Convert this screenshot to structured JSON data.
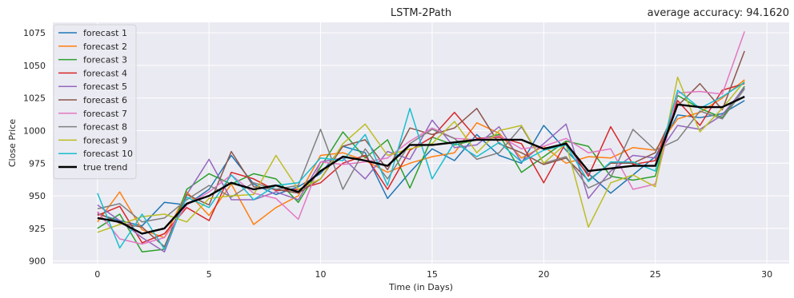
{
  "chart_data": {
    "type": "line",
    "title": "LSTM-2Path",
    "subtitle": "average accuracy: 94.1620",
    "xlabel": "Time (in Days)",
    "ylabel": "Close Price",
    "xlim": [
      -2,
      31
    ],
    "ylim": [
      898,
      1083
    ],
    "x_ticks": [
      0,
      5,
      10,
      15,
      20,
      25,
      30
    ],
    "x_tick_labels": [
      "0",
      "5",
      "10",
      "15",
      "20",
      "25",
      "30"
    ],
    "y_ticks": [
      900,
      925,
      950,
      975,
      1000,
      1025,
      1050,
      1075
    ],
    "y_tick_labels": [
      "900",
      "925",
      "950",
      "975",
      "1000",
      "1025",
      "1050",
      "1075"
    ],
    "grid": true,
    "legend_position": "top-left",
    "x": [
      0,
      1,
      2,
      3,
      4,
      5,
      6,
      7,
      8,
      9,
      10,
      11,
      12,
      13,
      14,
      15,
      16,
      17,
      18,
      19,
      20,
      21,
      22,
      23,
      24,
      25,
      26,
      27,
      28,
      29
    ],
    "series": [
      {
        "name": "forecast 1",
        "color": "#1f77b4",
        "width": 1.5,
        "values": [
          936,
          931,
          927,
          945,
          943,
          955,
          981,
          959,
          951,
          957,
          967,
          988,
          983,
          948,
          968,
          986,
          977,
          997,
          981,
          975,
          1004,
          985,
          967,
          952,
          966,
          980,
          1012,
          1010,
          1013,
          1023
        ]
      },
      {
        "name": "forecast 2",
        "color": "#ff7f0e",
        "width": 1.5,
        "values": [
          930,
          953,
          924,
          918,
          953,
          935,
          959,
          928,
          941,
          950,
          981,
          983,
          977,
          968,
          975,
          980,
          983,
          1006,
          998,
          979,
          988,
          975,
          980,
          979,
          987,
          985,
          1009,
          1014,
          1025,
          1039
        ]
      },
      {
        "name": "forecast 3",
        "color": "#2ca02c",
        "width": 1.5,
        "values": [
          925,
          936,
          907,
          909,
          955,
          967,
          959,
          967,
          963,
          945,
          972,
          999,
          979,
          993,
          956,
          995,
          989,
          993,
          997,
          968,
          980,
          992,
          988,
          965,
          962,
          965,
          1027,
          1017,
          1010,
          1034
        ]
      },
      {
        "name": "forecast 4",
        "color": "#d62728",
        "width": 1.5,
        "values": [
          935,
          942,
          914,
          921,
          941,
          931,
          968,
          963,
          954,
          955,
          960,
          975,
          981,
          955,
          985,
          995,
          1014,
          994,
          995,
          990,
          960,
          991,
          965,
          1003,
          974,
          977,
          1023,
          1004,
          1031,
          1036
        ]
      },
      {
        "name": "forecast 5",
        "color": "#9467bd",
        "width": 1.5,
        "values": [
          943,
          931,
          918,
          907,
          951,
          978,
          947,
          947,
          953,
          947,
          976,
          979,
          963,
          984,
          978,
          1008,
          987,
          989,
          1003,
          976,
          990,
          1005,
          948,
          969,
          981,
          979,
          1004,
          1001,
          1012,
          1033
        ]
      },
      {
        "name": "forecast 6",
        "color": "#8c564b",
        "width": 1.5,
        "values": [
          937,
          929,
          926,
          911,
          951,
          943,
          984,
          957,
          955,
          952,
          963,
          988,
          993,
          970,
          1002,
          997,
          1002,
          1017,
          990,
          983,
          974,
          979,
          962,
          975,
          975,
          983,
          1019,
          1036,
          1016,
          1061
        ]
      },
      {
        "name": "forecast 7",
        "color": "#e377c2",
        "width": 1.5,
        "values": [
          938,
          917,
          913,
          918,
          943,
          953,
          966,
          952,
          948,
          932,
          976,
          974,
          976,
          979,
          992,
          1002,
          994,
          993,
          996,
          986,
          988,
          994,
          983,
          986,
          955,
          959,
          1029,
          1030,
          1028,
          1076
        ]
      },
      {
        "name": "forecast 8",
        "color": "#7f7f7f",
        "width": 1.5,
        "values": [
          940,
          944,
          930,
          933,
          947,
          958,
          949,
          960,
          955,
          958,
          1001,
          955,
          986,
          963,
          990,
          1001,
          994,
          978,
          983,
          1003,
          975,
          980,
          956,
          964,
          1001,
          985,
          993,
          1015,
          1009,
          1032
        ]
      },
      {
        "name": "forecast 9",
        "color": "#bcbd22",
        "width": 1.5,
        "values": [
          922,
          928,
          934,
          936,
          930,
          948,
          950,
          951,
          981,
          955,
          963,
          990,
          1005,
          981,
          986,
          990,
          1007,
          983,
          1000,
          1004,
          975,
          990,
          926,
          960,
          966,
          957,
          1041,
          999,
          1017,
          1038
        ]
      },
      {
        "name": "forecast 10",
        "color": "#17becf",
        "width": 1.5,
        "values": [
          952,
          910,
          936,
          909,
          949,
          941,
          966,
          947,
          958,
          960,
          979,
          977,
          997,
          958,
          1017,
          963,
          991,
          980,
          991,
          976,
          985,
          989,
          961,
          976,
          976,
          969,
          1031,
          1017,
          1026,
          1037
        ]
      },
      {
        "name": "true trend",
        "color": "#000000",
        "width": 2.4,
        "values": [
          933,
          930,
          921,
          925,
          944,
          950,
          960,
          955,
          958,
          953,
          969,
          980,
          977,
          973,
          989,
          989,
          991,
          993,
          993,
          993,
          986,
          990,
          969,
          971,
          973,
          973,
          1020,
          1018,
          1018,
          1026
        ]
      }
    ]
  }
}
